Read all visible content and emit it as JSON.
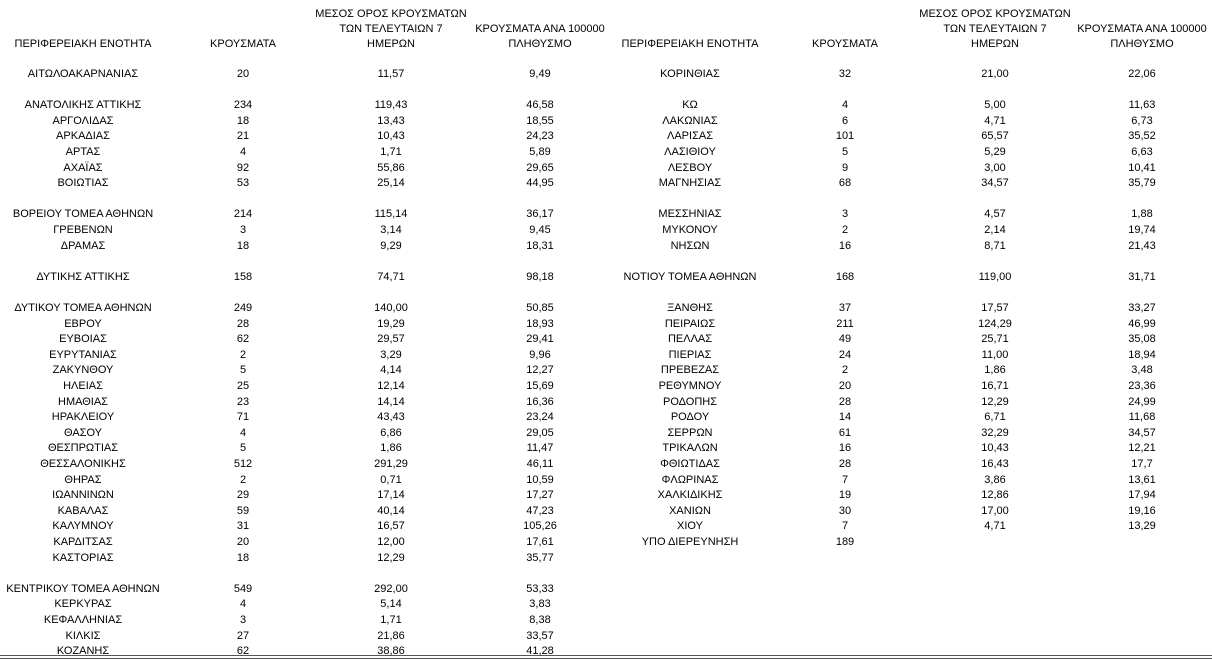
{
  "header": {
    "left": [
      [
        "ΠΕΡΙΦΕΡΕΙΑΚΗ ΕΝΟΤΗΤΑ"
      ],
      [
        "ΚΡΟΥΣΜΑΤΑ"
      ],
      [
        "ΜΕΣΟΣ ΟΡΟΣ ΚΡΟΥΣΜΑΤΩΝ",
        "ΤΩΝ ΤΕΛΕΥΤΑΙΩΝ 7",
        "ΗΜΕΡΩΝ"
      ],
      [
        "ΚΡΟΥΣΜΑΤΑ ΑΝΑ 100000",
        "ΠΛΗΘΥΣΜΟ"
      ]
    ],
    "right": [
      [
        "ΠΕΡΙΦΕΡΕΙΑΚΗ ΕΝΟΤΗΤΑ"
      ],
      [
        "ΚΡΟΥΣΜΑΤΑ"
      ],
      [
        "ΜΕΣΟΣ ΟΡΟΣ ΚΡΟΥΣΜΑΤΩΝ",
        "ΤΩΝ ΤΕΛΕΥΤΑΙΩΝ 7",
        "ΗΜΕΡΩΝ"
      ],
      [
        "ΚΡΟΥΣΜΑΤΑ ΑΝΑ 100000",
        "ΠΛΗΘΥΣΜΟ"
      ]
    ]
  },
  "left": {
    "blocks": [
      [
        [
          "ΑΙΤΩΛΟΑΚΑΡΝΑΝΙΑΣ",
          "20",
          "11,57",
          "9,49"
        ]
      ],
      [
        [
          "ΑΝΑΤΟΛΙΚΗΣ ΑΤΤΙΚΗΣ",
          "234",
          "119,43",
          "46,58"
        ],
        [
          "ΑΡΓΟΛΙΔΑΣ",
          "18",
          "13,43",
          "18,55"
        ],
        [
          "ΑΡΚΑΔΙΑΣ",
          "21",
          "10,43",
          "24,23"
        ],
        [
          "ΑΡΤΑΣ",
          "4",
          "1,71",
          "5,89"
        ],
        [
          "ΑΧΑΪΑΣ",
          "92",
          "55,86",
          "29,65"
        ],
        [
          "ΒΟΙΩΤΙΑΣ",
          "53",
          "25,14",
          "44,95"
        ]
      ],
      [
        [
          "ΒΟΡΕΙΟΥ ΤΟΜΕΑ ΑΘΗΝΩΝ",
          "214",
          "115,14",
          "36,17"
        ],
        [
          "ΓΡΕΒΕΝΩΝ",
          "3",
          "3,14",
          "9,45"
        ],
        [
          "ΔΡΑΜΑΣ",
          "18",
          "9,29",
          "18,31"
        ]
      ],
      [
        [
          "ΔΥΤΙΚΗΣ ΑΤΤΙΚΗΣ",
          "158",
          "74,71",
          "98,18"
        ]
      ],
      [
        [
          "ΔΥΤΙΚΟΥ ΤΟΜΕΑ ΑΘΗΝΩΝ",
          "249",
          "140,00",
          "50,85"
        ],
        [
          "ΕΒΡΟΥ",
          "28",
          "19,29",
          "18,93"
        ],
        [
          "ΕΥΒΟΙΑΣ",
          "62",
          "29,57",
          "29,41"
        ],
        [
          "ΕΥΡΥΤΑΝΙΑΣ",
          "2",
          "3,29",
          "9,96"
        ],
        [
          "ΖΑΚΥΝΘΟΥ",
          "5",
          "4,14",
          "12,27"
        ],
        [
          "ΗΛΕΙΑΣ",
          "25",
          "12,14",
          "15,69"
        ],
        [
          "ΗΜΑΘΙΑΣ",
          "23",
          "14,14",
          "16,36"
        ],
        [
          "ΗΡΑΚΛΕΙΟΥ",
          "71",
          "43,43",
          "23,24"
        ],
        [
          "ΘΑΣΟΥ",
          "4",
          "6,86",
          "29,05"
        ],
        [
          "ΘΕΣΠΡΩΤΙΑΣ",
          "5",
          "1,86",
          "11,47"
        ],
        [
          "ΘΕΣΣΑΛΟΝΙΚΗΣ",
          "512",
          "291,29",
          "46,11"
        ],
        [
          "ΘΗΡΑΣ",
          "2",
          "0,71",
          "10,59"
        ],
        [
          "ΙΩΑΝΝΙΝΩΝ",
          "29",
          "17,14",
          "17,27"
        ],
        [
          "ΚΑΒΑΛΑΣ",
          "59",
          "40,14",
          "47,23"
        ],
        [
          "ΚΑΛΥΜΝΟΥ",
          "31",
          "16,57",
          "105,26"
        ],
        [
          "ΚΑΡΔΙΤΣΑΣ",
          "20",
          "12,00",
          "17,61"
        ],
        [
          "ΚΑΣΤΟΡΙΑΣ",
          "18",
          "12,29",
          "35,77"
        ]
      ],
      [
        [
          "ΚΕΝΤΡΙΚΟΥ ΤΟΜΕΑ ΑΘΗΝΩΝ",
          "549",
          "292,00",
          "53,33"
        ],
        [
          "ΚΕΡΚΥΡΑΣ",
          "4",
          "5,14",
          "3,83"
        ],
        [
          "ΚΕΦΑΛΛΗΝΙΑΣ",
          "3",
          "1,71",
          "8,38"
        ],
        [
          "ΚΙΛΚΙΣ",
          "27",
          "21,86",
          "33,57"
        ],
        [
          "ΚΟΖΑΝΗΣ",
          "62",
          "38,86",
          "41,28"
        ]
      ]
    ]
  },
  "right": {
    "blocks": [
      [
        [
          "ΚΟΡΙΝΘΙΑΣ",
          "32",
          "21,00",
          "22,06"
        ]
      ],
      [
        [
          "ΚΩ",
          "4",
          "5,00",
          "11,63"
        ],
        [
          "ΛΑΚΩΝΙΑΣ",
          "6",
          "4,71",
          "6,73"
        ],
        [
          "ΛΑΡΙΣΑΣ",
          "101",
          "65,57",
          "35,52"
        ],
        [
          "ΛΑΣΙΘΙΟΥ",
          "5",
          "5,29",
          "6,63"
        ],
        [
          "ΛΕΣΒΟΥ",
          "9",
          "3,00",
          "10,41"
        ],
        [
          "ΜΑΓΝΗΣΙΑΣ",
          "68",
          "34,57",
          "35,79"
        ]
      ],
      [
        [
          "ΜΕΣΣΗΝΙΑΣ",
          "3",
          "4,57",
          "1,88"
        ],
        [
          "ΜΥΚΟΝΟΥ",
          "2",
          "2,14",
          "19,74"
        ],
        [
          "ΝΗΣΩΝ",
          "16",
          "8,71",
          "21,43"
        ]
      ],
      [
        [
          "ΝΟΤΙΟΥ ΤΟΜΕΑ ΑΘΗΝΩΝ",
          "168",
          "119,00",
          "31,71"
        ]
      ],
      [
        [
          "ΞΑΝΘΗΣ",
          "37",
          "17,57",
          "33,27"
        ],
        [
          "ΠΕΙΡΑΙΩΣ",
          "211",
          "124,29",
          "46,99"
        ],
        [
          "ΠΕΛΛΑΣ",
          "49",
          "25,71",
          "35,08"
        ],
        [
          "ΠΙΕΡΙΑΣ",
          "24",
          "11,00",
          "18,94"
        ],
        [
          "ΠΡΕΒΕΖΑΣ",
          "2",
          "1,86",
          "3,48"
        ],
        [
          "ΡΕΘΥΜΝΟΥ",
          "20",
          "16,71",
          "23,36"
        ],
        [
          "ΡΟΔΟΠΗΣ",
          "28",
          "12,29",
          "24,99"
        ],
        [
          "ΡΟΔΟΥ",
          "14",
          "6,71",
          "11,68"
        ],
        [
          "ΣΕΡΡΩΝ",
          "61",
          "32,29",
          "34,57"
        ],
        [
          "ΤΡΙΚΑΛΩΝ",
          "16",
          "10,43",
          "12,21"
        ],
        [
          "ΦΘΙΩΤΙΔΑΣ",
          "28",
          "16,43",
          "17,7"
        ],
        [
          "ΦΛΩΡΙΝΑΣ",
          "7",
          "3,86",
          "13,61"
        ],
        [
          "ΧΑΛΚΙΔΙΚΗΣ",
          "19",
          "12,86",
          "17,94"
        ],
        [
          "ΧΑΝΙΩΝ",
          "30",
          "17,00",
          "19,16"
        ],
        [
          "ΧΙΟΥ",
          "7",
          "4,71",
          "13,29"
        ],
        [
          "ΥΠΟ ΔΙΕΡΕΥΝΗΣΗ",
          "189"
        ]
      ]
    ]
  }
}
